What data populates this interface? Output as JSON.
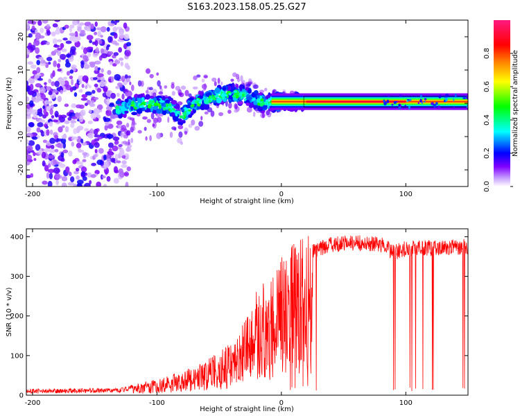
{
  "title": "S163.2023.158.05.25.G27",
  "chart_data": [
    {
      "type": "heatmap",
      "xlabel": "Height of straight line (km)",
      "ylabel": "Frequency (Hz)",
      "xlim": [
        -205,
        150
      ],
      "ylim": [
        -25,
        25
      ],
      "x_ticks": [
        -200,
        -100,
        0,
        100
      ],
      "y_ticks": [
        -20,
        -10,
        0,
        10,
        20
      ],
      "colorbar": {
        "label": "Normalized spectral amplitude",
        "range": [
          0,
          1
        ],
        "ticks": [
          "0.0",
          "0.2",
          "0.4",
          "0.6",
          "0.8"
        ],
        "colormap": [
          "#ffffff",
          "#c8a0ff",
          "#8000ff",
          "#0000ff",
          "#00ffff",
          "#00ff00",
          "#ffff00",
          "#ff8000",
          "#ff0000",
          "#ff1a80"
        ]
      },
      "signal_track": {
        "description_points": [
          {
            "x": -130,
            "y": -1.5
          },
          {
            "x": -110,
            "y": 0
          },
          {
            "x": -90,
            "y": -1
          },
          {
            "x": -80,
            "y": -4
          },
          {
            "x": -70,
            "y": 0
          },
          {
            "x": -55,
            "y": 2
          },
          {
            "x": -40,
            "y": 3
          },
          {
            "x": -25,
            "y": 2
          },
          {
            "x": -15,
            "y": 0
          },
          {
            "x": 0,
            "y": 0.5
          },
          {
            "x": 20,
            "y": 0.5
          },
          {
            "x": 150,
            "y": 0.5
          }
        ]
      },
      "noise_region": [
        -205,
        -130
      ],
      "grid": false
    },
    {
      "type": "line",
      "xlabel": "Height of straight line (km)",
      "ylabel": "SNR (10 * v/v)",
      "xlim": [
        -205,
        150
      ],
      "ylim": [
        0,
        420
      ],
      "x_ticks": [
        -200,
        -100,
        0,
        100
      ],
      "y_ticks": [
        0,
        100,
        200,
        300,
        400
      ],
      "series_color": "#ff0000",
      "envelope": [
        {
          "x": -205,
          "y": 10
        },
        {
          "x": -130,
          "y": 12
        },
        {
          "x": -120,
          "y": 20
        },
        {
          "x": -100,
          "y": 35
        },
        {
          "x": -80,
          "y": 50
        },
        {
          "x": -60,
          "y": 75
        },
        {
          "x": -40,
          "y": 110
        },
        {
          "x": -30,
          "y": 160
        },
        {
          "x": -20,
          "y": 220
        },
        {
          "x": -10,
          "y": 250
        },
        {
          "x": 0,
          "y": 290
        },
        {
          "x": 10,
          "y": 330
        },
        {
          "x": 20,
          "y": 350
        },
        {
          "x": 30,
          "y": 370
        },
        {
          "x": 40,
          "y": 380
        },
        {
          "x": 60,
          "y": 385
        },
        {
          "x": 80,
          "y": 380
        },
        {
          "x": 90,
          "y": 360
        },
        {
          "x": 100,
          "y": 370
        },
        {
          "x": 150,
          "y": 375
        }
      ],
      "grid": false
    }
  ]
}
